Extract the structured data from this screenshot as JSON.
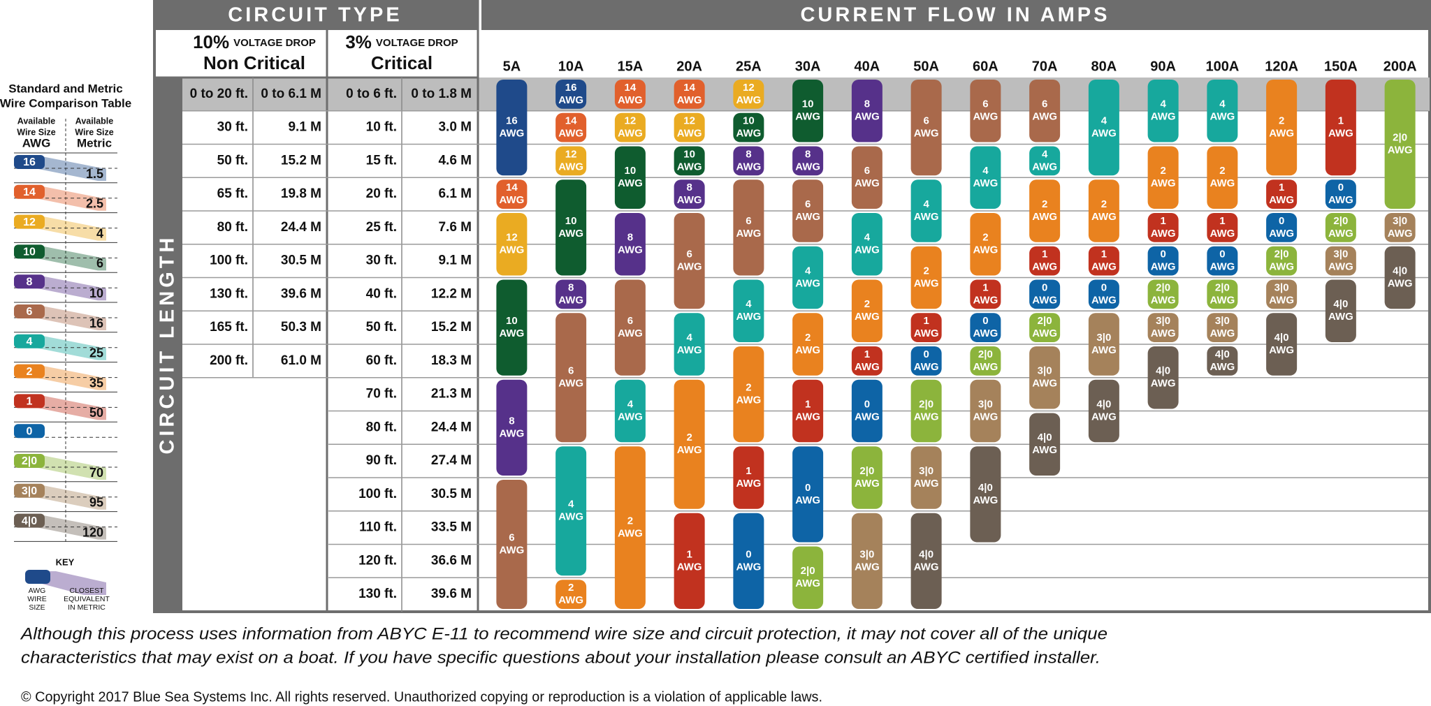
{
  "legend": {
    "title": [
      "Standard and Metric",
      "Wire Comparison Table"
    ],
    "awg_header": [
      "Available",
      "Wire Size",
      "AWG"
    ],
    "metric_header": [
      "Available",
      "Wire Size",
      "Metric"
    ],
    "rows": [
      {
        "gauge": "16",
        "metric": "1.5"
      },
      {
        "gauge": "14",
        "metric": "2.5"
      },
      {
        "gauge": "12",
        "metric": "4"
      },
      {
        "gauge": "10",
        "metric": "6"
      },
      {
        "gauge": "8",
        "metric": "10"
      },
      {
        "gauge": "6",
        "metric": "16"
      },
      {
        "gauge": "4",
        "metric": "25"
      },
      {
        "gauge": "2",
        "metric": "35"
      },
      {
        "gauge": "1",
        "metric": "50"
      },
      {
        "gauge": "0",
        "metric": null
      },
      {
        "gauge": "2|0",
        "metric": "70"
      },
      {
        "gauge": "3|0",
        "metric": "95"
      },
      {
        "gauge": "4|0",
        "metric": "120"
      }
    ]
  },
  "key": {
    "title": "KEY",
    "awg": [
      "AWG",
      "WIRE",
      "SIZE"
    ],
    "metric": [
      "CLOSEST",
      "EQUIVALENT",
      "IN METRIC"
    ]
  },
  "header": {
    "circuit_type": "CIRCUIT TYPE",
    "current_flow": "CURRENT FLOW IN AMPS",
    "circuit_length": "CIRCUIT LENGTH"
  },
  "non_critical": {
    "percent": "10%",
    "drop": "VOLTAGE DROP",
    "label": "Non Critical",
    "rows": [
      [
        "0 to 20 ft.",
        "0 to 6.1 M"
      ],
      [
        "30 ft.",
        "9.1 M"
      ],
      [
        "50 ft.",
        "15.2 M"
      ],
      [
        "65 ft.",
        "19.8 M"
      ],
      [
        "80 ft.",
        "24.4 M"
      ],
      [
        "100 ft.",
        "30.5 M"
      ],
      [
        "130 ft.",
        "39.6 M"
      ],
      [
        "165 ft.",
        "50.3 M"
      ],
      [
        "200 ft.",
        "61.0 M"
      ]
    ]
  },
  "critical": {
    "percent": "3%",
    "drop": "VOLTAGE DROP",
    "label": "Critical",
    "rows": [
      [
        "0 to 6 ft.",
        "0 to 1.8 M"
      ],
      [
        "10 ft.",
        "3.0 M"
      ],
      [
        "15 ft.",
        "4.6 M"
      ],
      [
        "20 ft.",
        "6.1 M"
      ],
      [
        "25 ft.",
        "7.6 M"
      ],
      [
        "30 ft.",
        "9.1 M"
      ],
      [
        "40 ft.",
        "12.2 M"
      ],
      [
        "50 ft.",
        "15.2 M"
      ],
      [
        "60 ft.",
        "18.3 M"
      ],
      [
        "70 ft.",
        "21.3 M"
      ],
      [
        "80 ft.",
        "24.4 M"
      ],
      [
        "90 ft.",
        "27.4 M"
      ],
      [
        "100 ft.",
        "30.5 M"
      ],
      [
        "110 ft.",
        "33.5 M"
      ],
      [
        "120 ft.",
        "36.6 M"
      ],
      [
        "130 ft.",
        "39.6 M"
      ]
    ]
  },
  "amps": [
    "5A",
    "10A",
    "15A",
    "20A",
    "25A",
    "30A",
    "40A",
    "50A",
    "60A",
    "70A",
    "80A",
    "90A",
    "100A",
    "120A",
    "150A",
    "200A"
  ],
  "awg_unit": "AWG",
  "gauge_colors": {
    "16": "#1f4a8a",
    "14": "#e1602c",
    "12": "#eaab22",
    "10": "#0f5c2f",
    "8": "#56318a",
    "6": "#a9694b",
    "4": "#17a89d",
    "2": "#e9821f",
    "1": "#c1321f",
    "0": "#0e64a6",
    "2|0": "#8cb43c",
    "3|0": "#a5825b",
    "4|0": "#6c5f53"
  },
  "columns": [
    [
      "16",
      "16",
      "16",
      "14",
      "12",
      "12",
      "10",
      "10",
      "10",
      "8",
      "8",
      "8",
      "6",
      "6",
      "6",
      "6"
    ],
    [
      "16",
      "14",
      "12",
      "10",
      "10",
      "10",
      "8",
      "6",
      "6",
      "6",
      "6",
      "4",
      "4",
      "4",
      "4",
      "2"
    ],
    [
      "14",
      "12",
      "10",
      "10",
      "8",
      "8",
      "6",
      "6",
      "6",
      "4",
      "4",
      "2",
      "2",
      "2",
      "2",
      "2"
    ],
    [
      "14",
      "12",
      "10",
      "8",
      "6",
      "6",
      "6",
      "4",
      "4",
      "2",
      "2",
      "2",
      "2",
      "1",
      "1",
      "1"
    ],
    [
      "12",
      "10",
      "8",
      "6",
      "6",
      "6",
      "4",
      "4",
      "2",
      "2",
      "2",
      "1",
      "1",
      "0",
      "0",
      "0"
    ],
    [
      "10",
      "10",
      "8",
      "6",
      "6",
      "4",
      "4",
      "2",
      "2",
      "1",
      "1",
      "0",
      "0",
      "0",
      "2|0",
      "2|0"
    ],
    [
      "8",
      "8",
      "6",
      "6",
      "4",
      "4",
      "2",
      "2",
      "1",
      "0",
      "0",
      "2|0",
      "2|0",
      "3|0",
      "3|0",
      "3|0"
    ],
    [
      "6",
      "6",
      "6",
      "4",
      "4",
      "2",
      "2",
      "1",
      "0",
      "2|0",
      "2|0",
      "3|0",
      "3|0",
      "4|0",
      "4|0",
      "4|0"
    ],
    [
      "6",
      "6",
      "4",
      "4",
      "2",
      "2",
      "1",
      "0",
      "2|0",
      "3|0",
      "3|0",
      "4|0",
      "4|0",
      "4|0",
      null,
      null
    ],
    [
      "6",
      "6",
      "4",
      "2",
      "2",
      "1",
      "0",
      "2|0",
      "3|0",
      "3|0",
      "4|0",
      "4|0",
      null,
      null,
      null,
      null
    ],
    [
      "4",
      "4",
      "4",
      "2",
      "2",
      "1",
      "0",
      "3|0",
      "3|0",
      "4|0",
      "4|0",
      null,
      null,
      null,
      null,
      null
    ],
    [
      "4",
      "4",
      "2",
      "2",
      "1",
      "0",
      "2|0",
      "3|0",
      "4|0",
      "4|0",
      null,
      null,
      null,
      null,
      null,
      null
    ],
    [
      "4",
      "4",
      "2",
      "2",
      "1",
      "0",
      "2|0",
      "3|0",
      "4|0",
      null,
      null,
      null,
      null,
      null,
      null,
      null
    ],
    [
      "2",
      "2",
      "2",
      "1",
      "0",
      "2|0",
      "3|0",
      "4|0",
      "4|0",
      null,
      null,
      null,
      null,
      null,
      null,
      null
    ],
    [
      "1",
      "1",
      "1",
      "0",
      "2|0",
      "3|0",
      "4|0",
      "4|0",
      null,
      null,
      null,
      null,
      null,
      null,
      null,
      null
    ],
    [
      "2|0",
      "2|0",
      "2|0",
      "2|0",
      "3|0",
      "4|0",
      "4|0",
      null,
      null,
      null,
      null,
      null,
      null,
      null,
      null,
      null
    ]
  ],
  "footer": {
    "note": [
      "Although this process uses information from ABYC E-11 to recommend wire size and circuit protection, it may not cover all of the unique",
      "characteristics that may exist on a boat. If you have specific questions about your installation please consult an ABYC certified installer."
    ],
    "copyright": "© Copyright 2017 Blue Sea Systems Inc. All rights reserved. Unauthorized copying or reproduction is a violation of applicable laws."
  }
}
